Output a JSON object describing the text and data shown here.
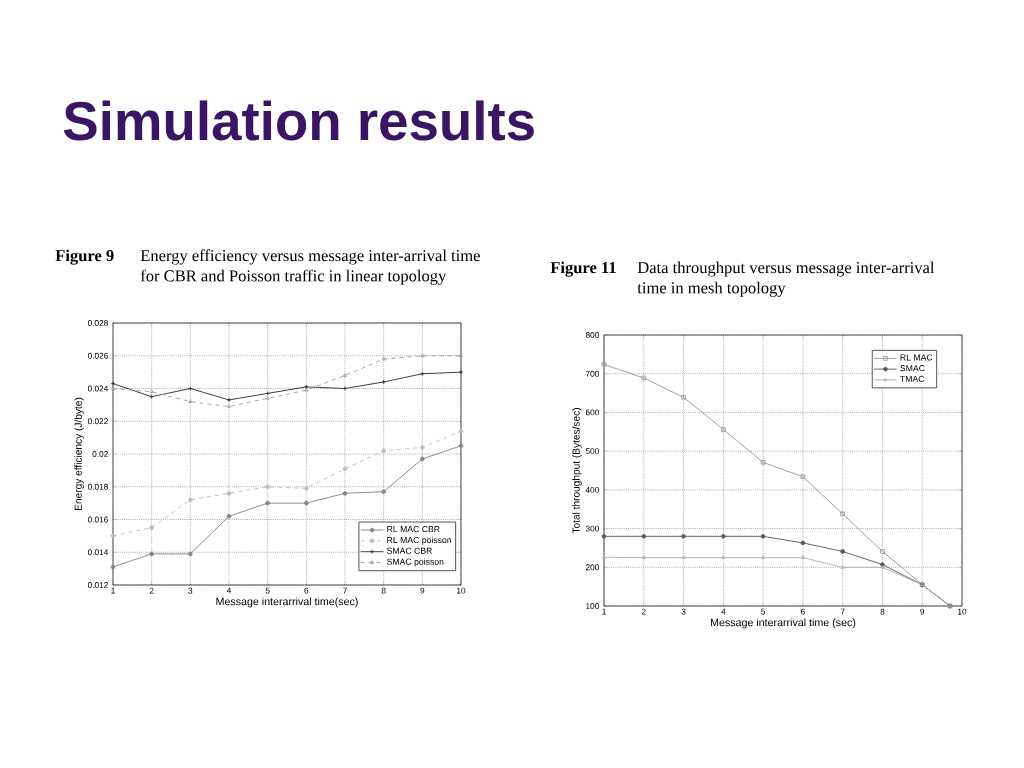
{
  "chart_data": [
    {
      "type": "line",
      "title": "Figure 9",
      "subtitle": "Energy efficiency versus message inter-arrival time for CBR and Poisson traffic in linear topology",
      "annotations": [
        "Simulation results"
      ],
      "xlabel": "Message interarrival time(sec)",
      "ylabel": "Energy efficiency (J/byte)",
      "x": [
        1,
        2,
        3,
        4,
        5,
        6,
        7,
        8,
        9,
        10
      ],
      "xlim": [
        1,
        10
      ],
      "xticks": [
        1,
        2,
        3,
        4,
        5,
        6,
        7,
        8,
        9,
        10
      ],
      "ylim": [
        0.012,
        0.028
      ],
      "yticks": [
        0.012,
        0.014,
        0.016,
        0.018,
        0.02,
        0.022,
        0.024,
        0.026,
        0.028
      ],
      "grid": true,
      "legend": "bottom right",
      "series": [
        {
          "name": "RL MAC CBR",
          "color": "#858585",
          "marker": "circle",
          "line_style": "solid",
          "values": [
            0.0131,
            0.0139,
            0.0139,
            0.0162,
            0.017,
            0.017,
            0.0176,
            0.0177,
            0.0197,
            0.0205
          ]
        },
        {
          "name": "RL MAC poisson",
          "color": "#bdbdbd",
          "marker": "circle",
          "line_style": "dashed",
          "values": [
            0.015,
            0.0155,
            0.0172,
            0.0176,
            0.018,
            0.0179,
            0.0191,
            0.0202,
            0.0204,
            0.0214
          ]
        },
        {
          "name": "SMAC CBR",
          "color": "#333333",
          "marker": "cross",
          "line_style": "solid",
          "values": [
            0.0243,
            0.0235,
            0.024,
            0.0233,
            0.0237,
            0.0241,
            0.024,
            0.0244,
            0.0249,
            0.025
          ]
        },
        {
          "name": "SMAC poisson",
          "color": "#9e9e9e",
          "marker": "triangle",
          "line_style": "dashed",
          "values": [
            0.024,
            0.0238,
            0.0232,
            0.0229,
            0.0234,
            0.0239,
            0.0248,
            0.0258,
            0.026,
            0.026
          ]
        }
      ]
    },
    {
      "type": "line",
      "title": "Figure 11",
      "subtitle": "Data throughput versus message inter-arrival time in mesh topology",
      "xlabel": "Message interarrival time (sec)",
      "ylabel": "Total throughput (Bytes/sec)",
      "x": [
        1,
        2,
        3,
        4,
        5,
        6,
        7,
        8,
        9,
        9.7
      ],
      "xlim": [
        1,
        10
      ],
      "xticks": [
        1,
        2,
        3,
        4,
        5,
        6,
        7,
        8,
        9,
        10
      ],
      "ylim": [
        100,
        800
      ],
      "yticks": [
        100,
        200,
        300,
        400,
        500,
        600,
        700,
        800
      ],
      "grid": true,
      "legend": "top right",
      "series": [
        {
          "name": "RL MAC",
          "color": "#9a9a9a",
          "marker": "square",
          "line_style": "solid",
          "values": [
            724,
            689,
            639,
            556,
            471,
            434,
            338,
            241,
            155,
            100
          ]
        },
        {
          "name": "SMAC",
          "color": "#5a5a5a",
          "marker": "circle",
          "line_style": "solid",
          "values": [
            280,
            280,
            280,
            280,
            280,
            263,
            241,
            207,
            155,
            100
          ]
        },
        {
          "name": "TMAC",
          "color": "#b0b0b0",
          "marker": "triangle",
          "line_style": "solid",
          "values": [
            226,
            225,
            225,
            225,
            225,
            225,
            200,
            200,
            155,
            100
          ]
        }
      ]
    }
  ]
}
